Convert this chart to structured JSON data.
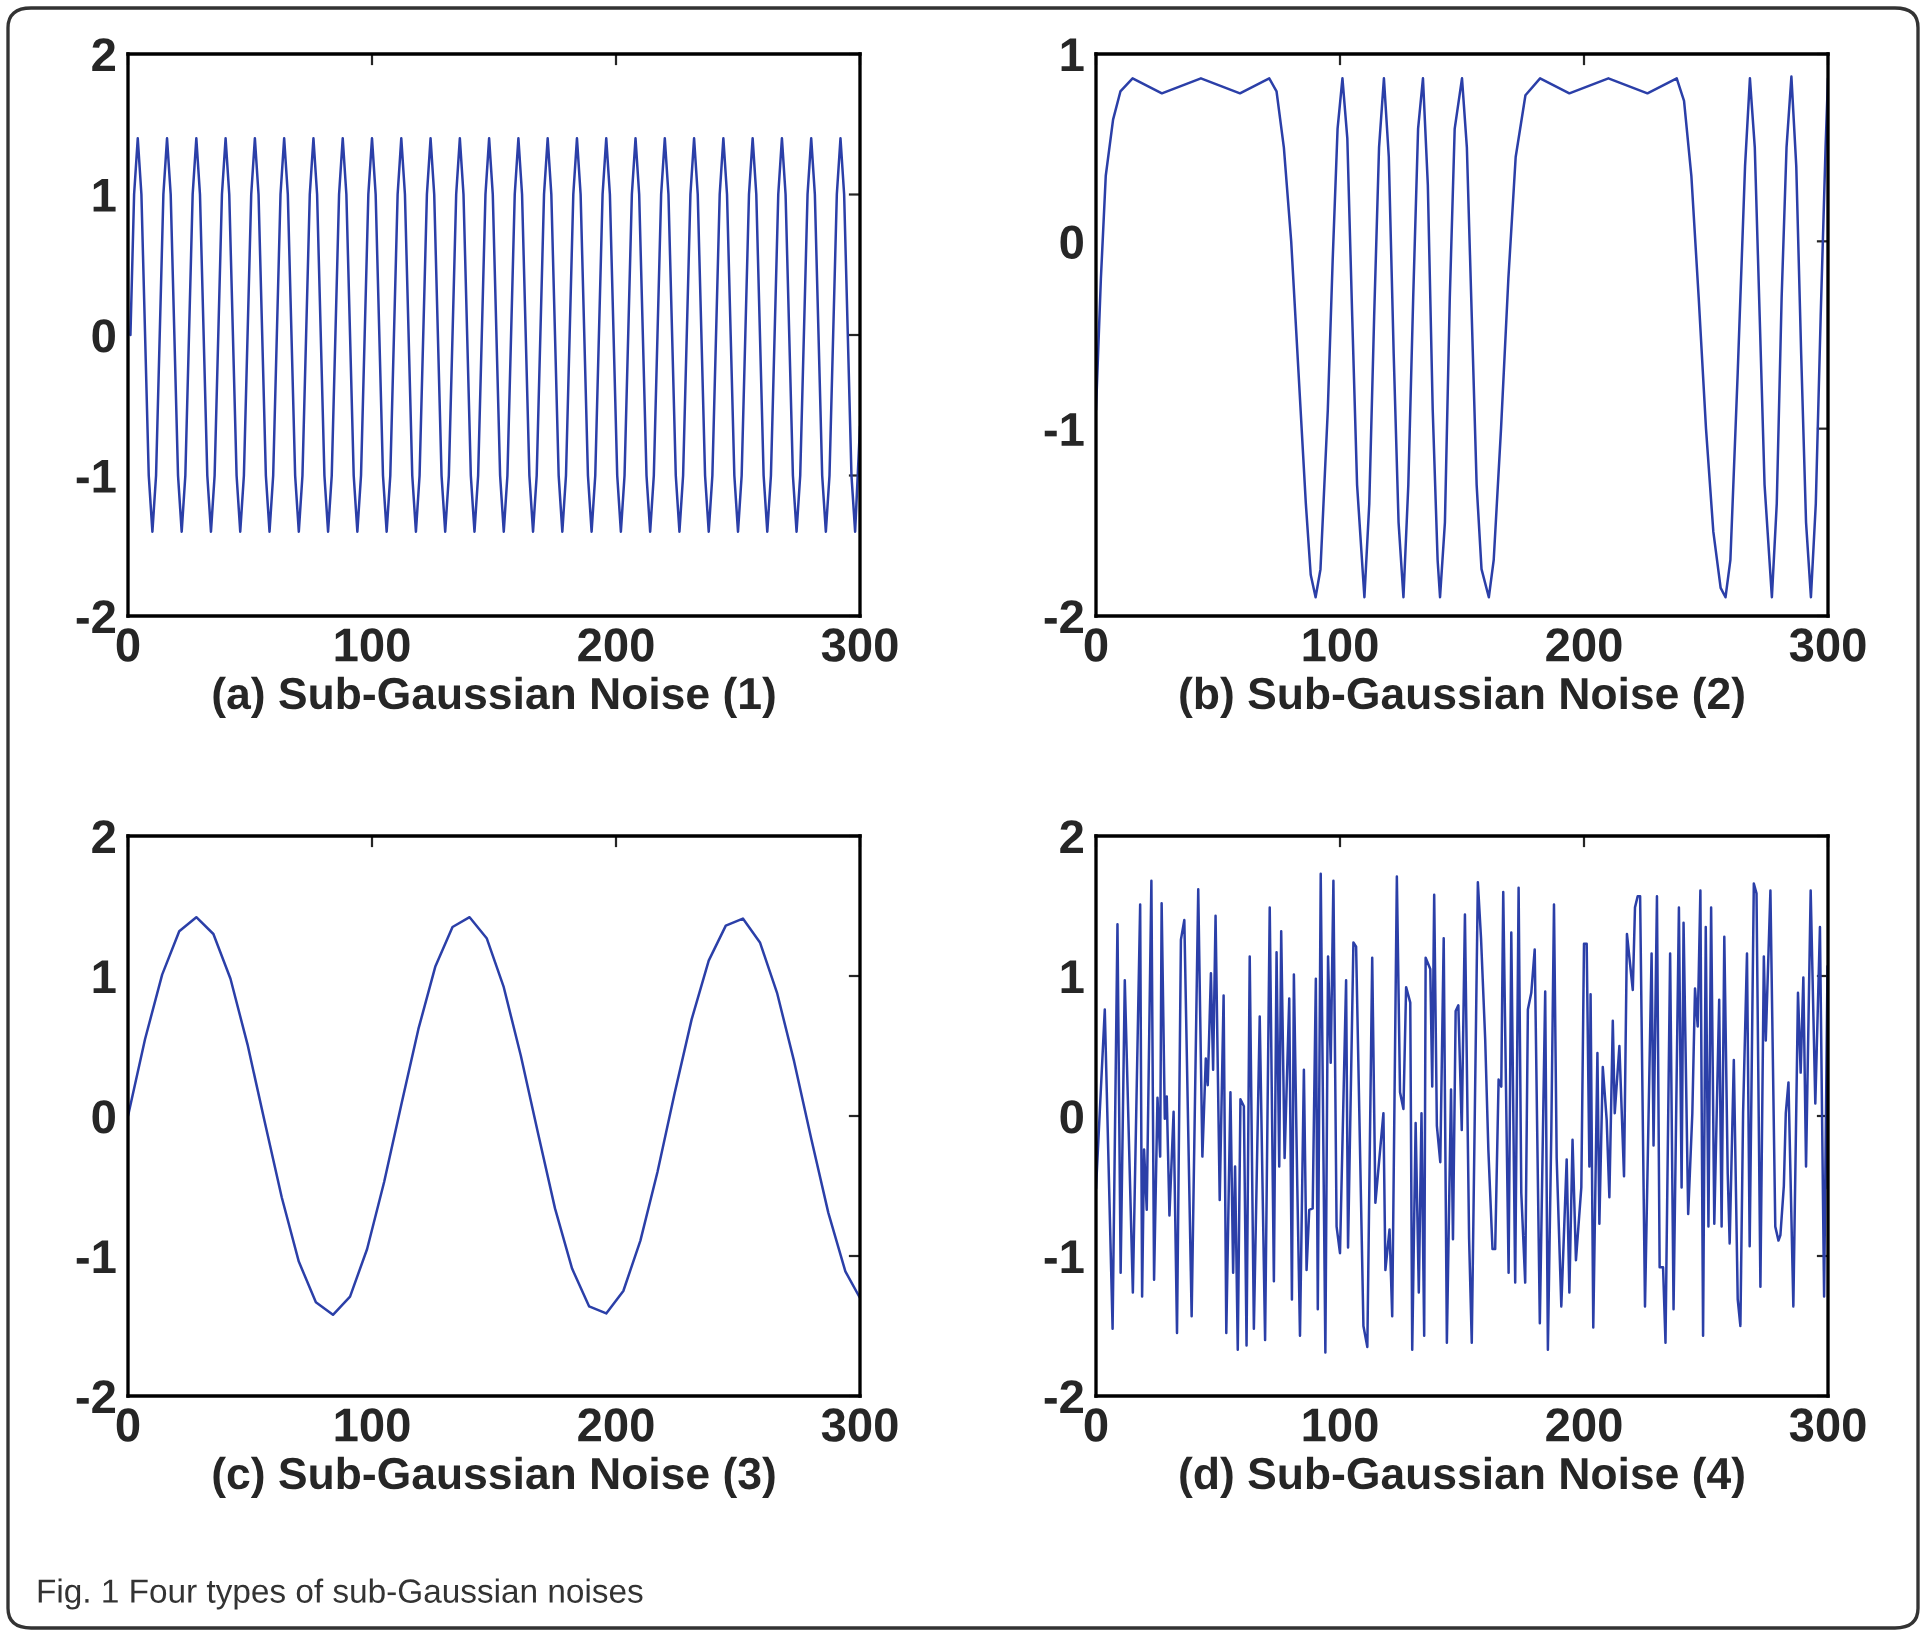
{
  "chart_data": [
    {
      "type": "line",
      "xlabel": "(a) Sub-Gaussian Noise (1)",
      "xlim": [
        0,
        300
      ],
      "ylim": [
        -2,
        2
      ],
      "xticks": [
        0,
        100,
        200,
        300
      ],
      "yticks": [
        -2,
        -1,
        0,
        1,
        2
      ],
      "series": [
        {
          "color": "#2b3fa8",
          "x": [
            1,
            2.5,
            4,
            5.5,
            7,
            8.5,
            10,
            11.5,
            13,
            14.5,
            16,
            17.5,
            19,
            20.5,
            22,
            23.5,
            25,
            26.5,
            28,
            29.5,
            31,
            32.5,
            34,
            35.5,
            37,
            38.5,
            40,
            41.5,
            43,
            44.5,
            46,
            47.5,
            49,
            50.5,
            52,
            53.5,
            55,
            56.5,
            58,
            59.5,
            61,
            62.5,
            64,
            65.5,
            67,
            68.5,
            70,
            71.5,
            73,
            74.5,
            76,
            77.5,
            79,
            80.5,
            82,
            83.5,
            85,
            86.5,
            88,
            89.5,
            91,
            92.5,
            94,
            95.5,
            97,
            98.5,
            100,
            101.5,
            103,
            104.5,
            106,
            107.5,
            109,
            110.5,
            112,
            113.5,
            115,
            116.5,
            118,
            119.5,
            121,
            122.5,
            124,
            125.5,
            127,
            128.5,
            130,
            131.5,
            133,
            134.5,
            136,
            137.5,
            139,
            140.5,
            142,
            143.5,
            145,
            146.5,
            148,
            149.5,
            151,
            152.5,
            154,
            155.5,
            157,
            158.5,
            160,
            161.5,
            163,
            164.5,
            166,
            167.5,
            169,
            170.5,
            172,
            173.5,
            175,
            176.5,
            178,
            179.5,
            181,
            182.5,
            184,
            185.5,
            187,
            188.5,
            190,
            191.5,
            193,
            194.5,
            196,
            197.5,
            199,
            200.5,
            202,
            203.5,
            205,
            206.5,
            208,
            209.5,
            211,
            212.5,
            214,
            215.5,
            217,
            218.5,
            220,
            221.5,
            223,
            224.5,
            226,
            227.5,
            229,
            230.5,
            232,
            233.5,
            235,
            236.5,
            238,
            239.5,
            241,
            242.5,
            244,
            245.5,
            247,
            248.5,
            250,
            251.5,
            253,
            254.5,
            256,
            257.5,
            259,
            260.5,
            262,
            263.5,
            265,
            266.5,
            268,
            269.5,
            271,
            272.5,
            274,
            275.5,
            277,
            278.5,
            280,
            281.5,
            283,
            284.5,
            286,
            287.5,
            289,
            290.5,
            292,
            293.5,
            295,
            296.5,
            298,
            300
          ],
          "values": [
            0,
            1.0,
            1.4,
            1.0,
            0,
            -1.0,
            -1.4,
            -1.0,
            0,
            1.0,
            1.4,
            1.0,
            0,
            -1.0,
            -1.4,
            -1.0,
            0,
            1.0,
            1.4,
            1.0,
            0,
            -1.0,
            -1.4,
            -1.0,
            0,
            1.0,
            1.4,
            1.0,
            0,
            -1.0,
            -1.4,
            -1.0,
            0,
            1.0,
            1.4,
            1.0,
            0,
            -1.0,
            -1.4,
            -1.0,
            0,
            1.0,
            1.4,
            1.0,
            0,
            -1.0,
            -1.4,
            -1.0,
            0,
            1.0,
            1.4,
            1.0,
            0,
            -1.0,
            -1.4,
            -1.0,
            0,
            1.0,
            1.4,
            1.0,
            0,
            -1.0,
            -1.4,
            -1.0,
            0,
            1.0,
            1.4,
            1.0,
            0,
            -1.0,
            -1.4,
            -1.0,
            0,
            1.0,
            1.4,
            1.0,
            0,
            -1.0,
            -1.4,
            -1.0,
            0,
            1.0,
            1.4,
            1.0,
            0,
            -1.0,
            -1.4,
            -1.0,
            0,
            1.0,
            1.4,
            1.0,
            0,
            -1.0,
            -1.4,
            -1.0,
            0,
            1.0,
            1.4,
            1.0,
            0,
            -1.0,
            -1.4,
            -1.0,
            0,
            1.0,
            1.4,
            1.0,
            0,
            -1.0,
            -1.4,
            -1.0,
            0,
            1.0,
            1.4,
            1.0,
            0,
            -1.0,
            -1.4,
            -1.0,
            0,
            1.0,
            1.4,
            1.0,
            0,
            -1.0,
            -1.4,
            -1.0,
            0,
            1.0,
            1.4,
            1.0,
            0,
            -1.0,
            -1.4,
            -1.0,
            0,
            1.0,
            1.4,
            1.0,
            0,
            -1.0,
            -1.4,
            -1.0,
            0,
            1.0,
            1.4,
            1.0,
            0,
            -1.0,
            -1.4,
            -1.0,
            0,
            1.0,
            1.4,
            1.0,
            0,
            -1.0,
            -1.4,
            -1.0,
            0,
            1.0,
            1.4,
            1.0,
            0,
            -1.0,
            -1.4,
            -1.0,
            0,
            1.0,
            1.4,
            1.0,
            0,
            -1.0,
            -1.4,
            -1.0,
            0,
            1.0,
            1.4,
            1.0,
            0,
            -1.0,
            -1.4,
            -1.0,
            0,
            1.0,
            1.4,
            1.0,
            0,
            -1.0,
            -1.4,
            -1.0,
            0,
            1.0,
            1.4,
            1.0,
            0,
            -1.0,
            -1.4,
            -0.65
          ]
        }
      ]
    },
    {
      "type": "line",
      "xlabel": "(b) Sub-Gaussian Noise (2)",
      "xlim": [
        0,
        300
      ],
      "ylim": [
        -2,
        1
      ],
      "xticks": [
        0,
        100,
        200,
        300
      ],
      "yticks": [
        -2,
        -1,
        0,
        1
      ],
      "series": [
        {
          "color": "#2b3fa8",
          "x": [
            0,
            2,
            4,
            7,
            10,
            15,
            21,
            27,
            35,
            43,
            51,
            59,
            65,
            71,
            74,
            77,
            80,
            83,
            86,
            88,
            90,
            92,
            95,
            97,
            99,
            101,
            103,
            105,
            107,
            110,
            112,
            114,
            116,
            118,
            120,
            122,
            124,
            126,
            128,
            130,
            132,
            134,
            136,
            138,
            140,
            141,
            143,
            145,
            147,
            150,
            152,
            154,
            156,
            158,
            161,
            163,
            166,
            169,
            172,
            176,
            182,
            188,
            194,
            202,
            210,
            218,
            226,
            232,
            238,
            241,
            244,
            247,
            250,
            253,
            256,
            258,
            260,
            263,
            266,
            268,
            270,
            272,
            274,
            277,
            279,
            281,
            283,
            285,
            287,
            289,
            291,
            293,
            295,
            297,
            299,
            300
          ],
          "values": [
            -0.9,
            -0.2,
            0.35,
            0.65,
            0.8,
            0.87,
            0.83,
            0.79,
            0.83,
            0.87,
            0.83,
            0.79,
            0.83,
            0.87,
            0.8,
            0.5,
            0,
            -0.7,
            -1.4,
            -1.78,
            -1.9,
            -1.75,
            -0.9,
            -0.1,
            0.6,
            0.87,
            0.55,
            -0.4,
            -1.3,
            -1.9,
            -1.4,
            -0.4,
            0.5,
            0.87,
            0.45,
            -0.6,
            -1.5,
            -1.9,
            -1.3,
            -0.3,
            0.6,
            0.87,
            0.3,
            -0.9,
            -1.7,
            -1.9,
            -1.5,
            -0.3,
            0.6,
            0.87,
            0.5,
            -0.4,
            -1.3,
            -1.75,
            -1.9,
            -1.7,
            -1.0,
            -0.2,
            0.45,
            0.78,
            0.87,
            0.83,
            0.79,
            0.83,
            0.87,
            0.83,
            0.79,
            0.83,
            0.87,
            0.75,
            0.35,
            -0.3,
            -1.0,
            -1.55,
            -1.85,
            -1.9,
            -1.7,
            -0.7,
            0.4,
            0.87,
            0.5,
            -0.4,
            -1.3,
            -1.9,
            -1.4,
            -0.3,
            0.5,
            0.88,
            0.4,
            -0.6,
            -1.5,
            -1.9,
            -1.4,
            -0.4,
            0.5,
            0.87
          ]
        }
      ]
    },
    {
      "type": "line",
      "xlabel": "(c) Sub-Gaussian Noise (3)",
      "xlim": [
        0,
        300
      ],
      "ylim": [
        -2,
        2
      ],
      "xticks": [
        0,
        100,
        200,
        300
      ],
      "yticks": [
        -2,
        -1,
        0,
        1,
        2
      ],
      "series": [
        {
          "color": "#2b3fa8",
          "x": [
            0,
            7,
            14,
            21,
            28,
            35,
            42,
            49,
            56,
            63,
            70,
            77,
            84,
            91,
            98,
            105,
            112,
            119,
            126,
            133,
            140,
            147,
            154,
            161,
            168,
            175,
            182,
            189,
            196,
            203,
            210,
            217,
            224,
            231,
            238,
            245,
            252,
            259,
            266,
            273,
            280,
            287,
            294,
            300
          ],
          "values": [
            0,
            0.55,
            1.01,
            1.32,
            1.42,
            1.3,
            0.98,
            0.51,
            -0.04,
            -0.58,
            -1.04,
            -1.33,
            -1.42,
            -1.29,
            -0.95,
            -0.47,
            0.08,
            0.62,
            1.07,
            1.35,
            1.42,
            1.27,
            0.92,
            0.43,
            -0.12,
            -0.66,
            -1.09,
            -1.36,
            -1.41,
            -1.25,
            -0.89,
            -0.4,
            0.16,
            0.69,
            1.11,
            1.36,
            1.41,
            1.24,
            0.88,
            0.39,
            -0.16,
            -0.69,
            -1.11,
            -1.3
          ]
        }
      ]
    },
    {
      "type": "line",
      "xlabel": "(d) Sub-Gaussian Noise (4)",
      "xlim": [
        0,
        300
      ],
      "ylim": [
        -2,
        2
      ],
      "xticks": [
        0,
        100,
        200,
        300
      ],
      "yticks": [
        -2,
        -1,
        0,
        1,
        2
      ],
      "annotations": [
        "Fig. 1 Four types of sub-Gaussian noises"
      ],
      "series": [
        {
          "color": "#2b3fa8",
          "x": [
            0,
            3.6,
            6.8,
            8.8,
            10.1,
            11.8,
            15.1,
            18.1,
            18.9,
            19.7,
            20.8,
            22.7,
            23.8,
            25.2,
            26.3,
            26.9,
            28.2,
            29.0,
            30.1,
            31.8,
            33.2,
            34.8,
            36.2,
            39.2,
            41.9,
            43.6,
            45.0,
            45.8,
            47.1,
            48.0,
            49.0,
            50.7,
            52.3,
            53.4,
            55.1,
            56.2,
            57.0,
            58.1,
            59.2,
            60.6,
            61.7,
            63.0,
            64.7,
            67.1,
            69.3,
            71.2,
            72.9,
            74.0,
            75.1,
            75.9,
            77.3,
            79.2,
            80.3,
            81.1,
            82.5,
            83.6,
            85.2,
            86.3,
            87.4,
            88.8,
            90.1,
            90.9,
            92.1,
            94.0,
            95.1,
            96.2,
            97.3,
            98.6,
            100.0,
            102.5,
            103.3,
            105.5,
            106.6,
            109.6,
            111.2,
            113.2,
            114.5,
            117.8,
            118.6,
            120.3,
            121.4,
            123.3,
            124.6,
            126.0,
            127.1,
            128.8,
            129.6,
            131.0,
            132.3,
            133.4,
            134.5,
            135.1,
            137.0,
            137.8,
            138.6,
            139.7,
            141.1,
            142.5,
            143.8,
            145.5,
            146.3,
            147.4,
            148.5,
            149.9,
            151.2,
            152.9,
            154.0,
            156.5,
            157.8,
            159.5,
            160.8,
            162.5,
            163.6,
            165.0,
            166.1,
            166.9,
            169.1,
            170.2,
            171.8,
            173.2,
            174.3,
            175.9,
            177.0,
            178.4,
            179.8,
            181.9,
            184.1,
            185.2,
            186.6,
            187.7,
            188.8,
            190.7,
            192.9,
            194.0,
            195.3,
            196.7,
            198.9,
            200.0,
            201.1,
            202.2,
            202.7,
            203.8,
            205.5,
            206.3,
            207.7,
            209.3,
            210.4,
            211.8,
            212.6,
            214.5,
            216.4,
            217.6,
            220.0,
            220.9,
            222.0,
            223.0,
            225.0,
            227.7,
            228.5,
            229.9,
            231.0,
            232.4,
            233.4,
            235.3,
            236.7,
            238.9,
            240.0,
            240.8,
            242.7,
            244.4,
            245.5,
            246.6,
            247.7,
            248.8,
            249.9,
            251.0,
            252.1,
            253.4,
            255.4,
            256.4,
            257.5,
            258.9,
            259.7,
            261.4,
            263.0,
            264.1,
            265.2,
            266.8,
            267.9,
            269.6,
            270.7,
            272.3,
            273.7,
            274.5,
            276.4,
            278.4,
            279.7,
            280.5,
            281.9,
            282.7,
            283.8,
            285.8,
            287.7,
            288.8,
            289.9,
            291.0,
            292.9,
            294.8,
            296.7,
            298.4,
            299.8,
            300
          ],
          "values": [
            -0.52,
            0.76,
            -1.52,
            1.37,
            -1.12,
            0.97,
            -1.26,
            1.51,
            -1.29,
            -0.24,
            -0.67,
            1.68,
            -1.17,
            0.13,
            -0.29,
            1.52,
            -0.02,
            0.14,
            -0.71,
            0.03,
            -1.55,
            1.26,
            1.4,
            -1.43,
            1.62,
            -0.29,
            0.41,
            0.22,
            1.02,
            0.33,
            1.43,
            -0.6,
            0.86,
            -1.55,
            0.17,
            -1.12,
            -0.36,
            -1.67,
            0.12,
            0.07,
            -1.64,
            1.14,
            -1.52,
            0.71,
            -1.6,
            1.49,
            -1.18,
            1.17,
            -0.36,
            1.32,
            -0.3,
            0.84,
            -1.31,
            1.01,
            -0.5,
            -1.57,
            0.33,
            -1.1,
            -0.67,
            -0.66,
            0.98,
            -1.38,
            1.73,
            -1.69,
            1.14,
            0.38,
            1.68,
            -0.79,
            -0.98,
            0.97,
            -0.94,
            1.24,
            1.21,
            -1.5,
            -1.65,
            1.13,
            -0.62,
            0.02,
            -1.1,
            -0.81,
            -1.43,
            1.71,
            0.17,
            0.05,
            0.92,
            0.81,
            -1.67,
            -0.05,
            -1.26,
            0.02,
            -1.57,
            1.13,
            1.05,
            0.21,
            1.58,
            -0.07,
            -0.33,
            1.27,
            -1.62,
            0.19,
            -0.88,
            0.75,
            0.79,
            -0.1,
            1.44,
            -0.87,
            -1.62,
            1.67,
            1.27,
            0.55,
            -0.24,
            -0.95,
            -0.95,
            0.26,
            0.21,
            1.6,
            -1.12,
            1.31,
            -1.19,
            1.63,
            -0.55,
            -1.19,
            0.76,
            0.88,
            1.19,
            -1.48,
            0.89,
            -1.67,
            -0.12,
            1.51,
            -0.3,
            -1.36,
            -0.31,
            -1.26,
            -0.17,
            -1.03,
            -0.51,
            1.23,
            1.23,
            -0.36,
            0.87,
            -1.51,
            0.45,
            -0.77,
            0.35,
            -0.03,
            -0.58,
            0.68,
            0.02,
            0.5,
            -0.43,
            1.3,
            0.9,
            1.49,
            1.57,
            1.57,
            -1.36,
            1.16,
            -0.21,
            1.57,
            -1.08,
            -1.08,
            -1.62,
            1.16,
            -1.38,
            1.49,
            -0.51,
            1.38,
            -0.7,
            0.02,
            0.91,
            0.64,
            1.61,
            -1.57,
            1.35,
            -0.79,
            1.49,
            -0.77,
            0.83,
            -0.79,
            1.28,
            -0.41,
            -0.91,
            0.4,
            -1.31,
            -1.5,
            0.02,
            1.16,
            -0.93,
            1.66,
            1.59,
            -1.22,
            1.14,
            0.54,
            1.61,
            -0.79,
            -0.89,
            -0.85,
            -0.5,
            0.02,
            0.24,
            -1.36,
            0.88,
            0.31,
            0.99,
            -0.36,
            1.61,
            0.09,
            1.35,
            -1.29,
            1.07,
            -0.52
          ]
        }
      ]
    }
  ]
}
